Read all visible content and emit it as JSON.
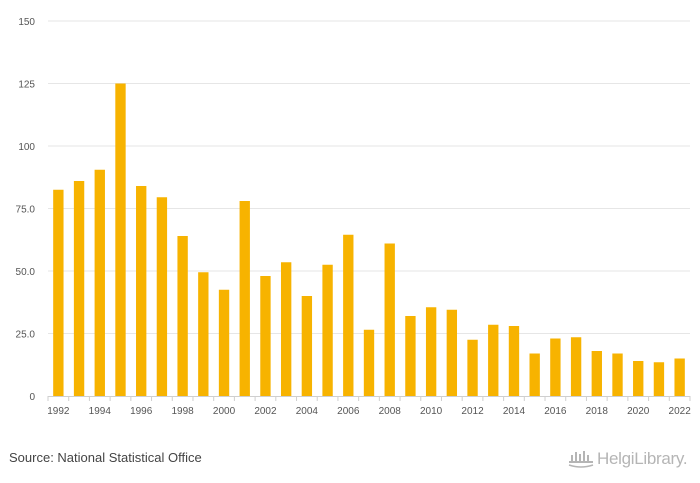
{
  "chart_data": {
    "type": "bar",
    "categories": [
      "1992",
      "1993",
      "1994",
      "1995",
      "1996",
      "1997",
      "1998",
      "1999",
      "2000",
      "2001",
      "2002",
      "2003",
      "2004",
      "2005",
      "2006",
      "2007",
      "2008",
      "2009",
      "2010",
      "2011",
      "2012",
      "2013",
      "2014",
      "2015",
      "2016",
      "2017",
      "2018",
      "2019",
      "2020",
      "2021",
      "2022"
    ],
    "x_tick_labels": [
      "1992",
      "1994",
      "1996",
      "1998",
      "2000",
      "2002",
      "2004",
      "2006",
      "2008",
      "2010",
      "2012",
      "2014",
      "2016",
      "2018",
      "2020",
      "2022"
    ],
    "values": [
      82.5,
      86.0,
      90.5,
      125.0,
      84.0,
      79.5,
      64.0,
      49.5,
      42.5,
      78.0,
      48.0,
      53.5,
      40.0,
      52.5,
      64.5,
      26.5,
      61.0,
      32.0,
      35.5,
      34.5,
      22.5,
      28.5,
      28.0,
      17.0,
      23.0,
      23.5,
      18.0,
      17.0,
      14.0,
      13.5,
      15.0
    ],
    "ylim": [
      0,
      150
    ],
    "y_ticks": [
      0,
      25.0,
      50.0,
      75.0,
      100,
      125,
      150
    ],
    "y_tick_labels": [
      "0",
      "25.0",
      "50.0",
      "75.0",
      "100",
      "125",
      "150"
    ],
    "grid": true,
    "bar_color": "#f7b300",
    "title": "",
    "xlabel": "",
    "ylabel": ""
  },
  "footer": {
    "source": "Source: National Statistical Office",
    "logo_text": "HelgiLibrary.",
    "logo_icon": "helgi-library-logo-icon"
  }
}
